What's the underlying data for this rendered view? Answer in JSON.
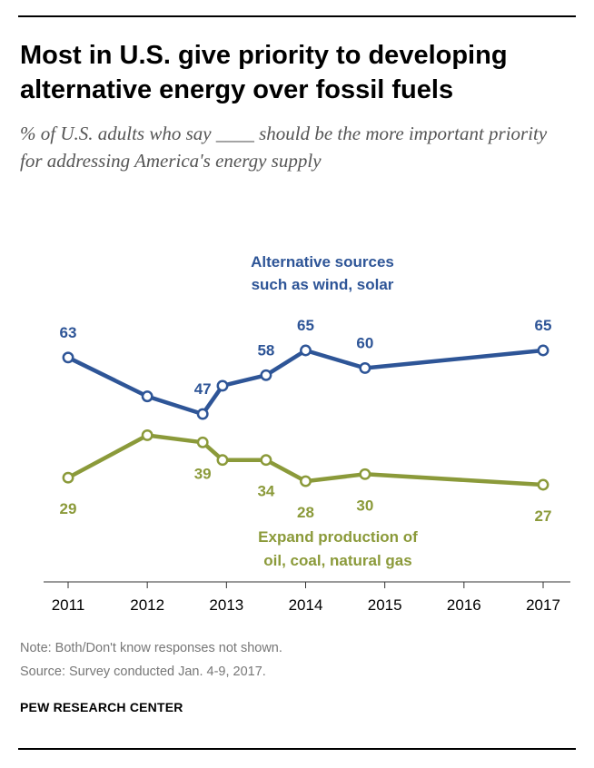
{
  "header": {
    "title": "Most in U.S. give priority to developing alternative energy over fossil fuels",
    "subtitle": "% of U.S. adults who say ____ should be the more important priority for addressing America's energy supply"
  },
  "chart_data": {
    "type": "line",
    "xlim": [
      2011,
      2017
    ],
    "ylim": [
      20,
      70
    ],
    "x_ticks": [
      "2011",
      "2012",
      "2013",
      "2014",
      "2015",
      "2016",
      "2017"
    ],
    "series": [
      {
        "name": "Alternative sources such as wind, solar",
        "label_lines": [
          "Alternative sources",
          "such as wind, solar"
        ],
        "color": "#2e5597",
        "points": [
          {
            "x": 2011.0,
            "y": 63,
            "label": "63"
          },
          {
            "x": 2012.0,
            "y": 52,
            "label": ""
          },
          {
            "x": 2012.7,
            "y": 47,
            "label": "47"
          },
          {
            "x": 2012.95,
            "y": 55,
            "label": ""
          },
          {
            "x": 2013.5,
            "y": 58,
            "label": "58"
          },
          {
            "x": 2014.0,
            "y": 65,
            "label": "65"
          },
          {
            "x": 2014.75,
            "y": 60,
            "label": "60"
          },
          {
            "x": 2017.0,
            "y": 65,
            "label": "65"
          }
        ]
      },
      {
        "name": "Expand production of oil, coal, natural gas",
        "label_lines": [
          "Expand production of",
          "oil, coal, natural gas"
        ],
        "color": "#8b9a3a",
        "points": [
          {
            "x": 2011.0,
            "y": 29,
            "label": "29"
          },
          {
            "x": 2012.0,
            "y": 41,
            "label": ""
          },
          {
            "x": 2012.7,
            "y": 39,
            "label": "39"
          },
          {
            "x": 2012.95,
            "y": 34,
            "label": ""
          },
          {
            "x": 2013.5,
            "y": 34,
            "label": "34"
          },
          {
            "x": 2014.0,
            "y": 28,
            "label": "28"
          },
          {
            "x": 2014.75,
            "y": 30,
            "label": "30"
          },
          {
            "x": 2017.0,
            "y": 27,
            "label": "27"
          }
        ]
      }
    ],
    "grid": false,
    "legend": "inline-labels"
  },
  "footer": {
    "note": "Note: Both/Don't know responses not shown.",
    "source": "Source: Survey conducted Jan. 4-9, 2017.",
    "brand": "PEW RESEARCH CENTER"
  }
}
